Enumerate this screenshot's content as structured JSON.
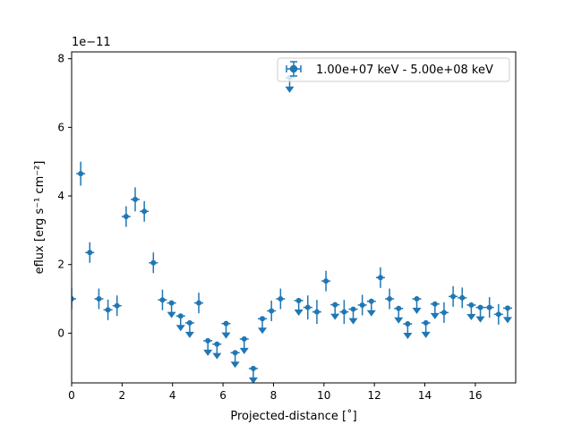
{
  "chart_data": {
    "type": "scatter",
    "title": "",
    "xlabel": "Projected-distance [$^{\\circ}$]",
    "xlabel_text": "Projected-distance [˚]",
    "ylabel_text": "eflux [erg s⁻¹ cm⁻²]",
    "y_scale_label": "1e−11",
    "xlim": [
      0,
      17.6
    ],
    "ylim": [
      -1.45,
      8.2
    ],
    "xticks": [
      0,
      2,
      4,
      6,
      8,
      10,
      12,
      14,
      16
    ],
    "yticks": [
      0,
      2,
      4,
      6,
      8
    ],
    "legend": {
      "label": "1.00e+07 keV - 5.00e+08 keV",
      "placement": "top-right"
    },
    "color": "#1f77b4",
    "series": [
      {
        "name": "1.00e+07 keV - 5.00e+08 keV",
        "x": [
          0.0,
          0.36,
          0.72,
          1.08,
          1.44,
          1.8,
          2.16,
          2.52,
          2.88,
          3.24,
          3.6,
          3.96,
          4.32,
          4.68,
          5.04,
          5.4,
          5.76,
          6.12,
          6.48,
          6.84,
          7.2,
          7.56,
          7.92,
          8.28,
          8.64,
          9.0,
          9.36,
          9.72,
          10.08,
          10.44,
          10.8,
          11.16,
          11.52,
          11.88,
          12.24,
          12.6,
          12.96,
          13.32,
          13.68,
          14.04,
          14.4,
          14.76,
          15.12,
          15.48,
          15.84,
          16.2,
          16.56,
          16.92,
          17.28
        ],
        "y": [
          1.0,
          4.65,
          2.35,
          1.0,
          0.68,
          0.8,
          3.4,
          3.9,
          3.55,
          2.05,
          0.97,
          0.88,
          0.5,
          0.3,
          0.88,
          -0.22,
          -0.32,
          0.28,
          -0.57,
          -0.17,
          -1.03,
          0.42,
          0.65,
          1.0,
          7.45,
          0.95,
          0.75,
          0.62,
          1.52,
          0.83,
          0.62,
          0.7,
          0.82,
          0.93,
          1.62,
          1.0,
          0.72,
          0.27,
          1.0,
          0.3,
          0.85,
          0.6,
          1.07,
          1.03,
          0.82,
          0.75,
          0.75,
          0.55,
          0.73
        ],
        "yerr": [
          0.3,
          0.35,
          0.3,
          0.3,
          0.3,
          0.3,
          0.3,
          0.35,
          0.3,
          0.3,
          0.3,
          0.3,
          0.3,
          0.3,
          0.3,
          0.05,
          0.05,
          0.3,
          0.05,
          0.05,
          0.05,
          0.3,
          0.3,
          0.3,
          0.45,
          0.3,
          0.35,
          0.35,
          0.3,
          0.3,
          0.35,
          0.3,
          0.3,
          0.3,
          0.3,
          0.3,
          0.3,
          0.3,
          0.3,
          0.3,
          0.3,
          0.3,
          0.3,
          0.3,
          0.3,
          0.3,
          0.3,
          0.3,
          0.3
        ],
        "upper_limit": [
          false,
          false,
          false,
          false,
          false,
          false,
          false,
          false,
          false,
          false,
          false,
          true,
          true,
          true,
          false,
          true,
          true,
          true,
          true,
          true,
          true,
          true,
          false,
          false,
          true,
          true,
          false,
          false,
          false,
          true,
          false,
          true,
          false,
          true,
          false,
          false,
          true,
          true,
          true,
          true,
          true,
          false,
          false,
          false,
          true,
          true,
          false,
          false,
          true
        ]
      }
    ]
  }
}
